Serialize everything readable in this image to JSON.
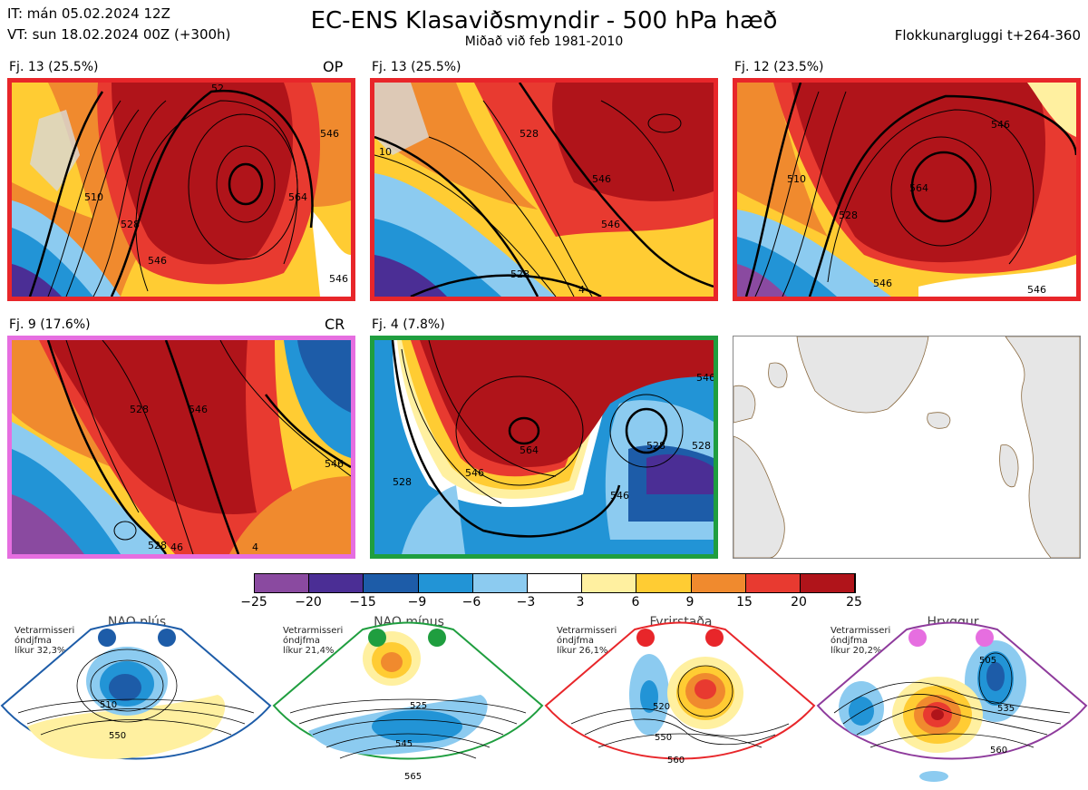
{
  "header": {
    "issue": "IT: mán 05.02.2024 12Z",
    "valid": "VT: sun 18.02.2024 00Z  (+300h)",
    "title": "EC-ENS Klasaviðsmyndir - 500 hPa hæð",
    "subtitle": "Miðað við feb 1981-2010",
    "window": "Flokkunargluggi t+264-360"
  },
  "panels": [
    {
      "label": "Fj. 13 (25.5%)",
      "tag": "OP",
      "frame": "#e8262a",
      "contours": [
        "510",
        "528",
        "546",
        "546",
        "564",
        "546",
        "52"
      ]
    },
    {
      "label": "Fj. 13 (25.5%)",
      "tag": "",
      "frame": "#e8262a",
      "contours": [
        "528",
        "546",
        "528",
        "10",
        "546",
        "4"
      ]
    },
    {
      "label": "Fj. 12 (23.5%)",
      "tag": "",
      "frame": "#e8262a",
      "contours": [
        "510",
        "528",
        "546",
        "564",
        "546",
        "546"
      ]
    },
    {
      "label": "Fj. 9 (17.6%)",
      "tag": "CR",
      "frame": "#e66ee0",
      "contours": [
        "528",
        "546",
        "546",
        "528",
        "46",
        "4"
      ]
    },
    {
      "label": "Fj. 4 (7.8%)",
      "tag": "",
      "frame": "#1f9e3f",
      "contours": [
        "564",
        "546",
        "528",
        "546",
        "528",
        "528",
        "546"
      ]
    }
  ],
  "colorbar": {
    "ticks": [
      "−25",
      "−20",
      "−15",
      "−9",
      "−6",
      "−3",
      "3",
      "6",
      "9",
      "15",
      "20",
      "25"
    ],
    "colors": [
      "#8a4aa0",
      "#4b2e95",
      "#1d5ca8",
      "#2294d6",
      "#8ccbf0",
      "#ffffff",
      "#fff0a0",
      "#ffcc33",
      "#f08a2e",
      "#e83a30",
      "#b0141a"
    ]
  },
  "regimes": [
    {
      "title": "NAO plús",
      "meta": [
        "Vetrarmisseri",
        "óndjfma",
        "líkur 32,3%"
      ],
      "color": "#1d5ca8",
      "contours": [
        "510",
        "550"
      ]
    },
    {
      "title": "NAO mínus",
      "meta": [
        "Vetrarmisseri",
        "óndjfma",
        "líkur 21,4%"
      ],
      "color": "#1f9e3f",
      "contours": [
        "525",
        "545",
        "565"
      ]
    },
    {
      "title": "Fyrirstaða",
      "meta": [
        "Vetrarmisseri",
        "óndjfma",
        "líkur 26,1%"
      ],
      "color": "#e8262a",
      "contours": [
        "520",
        "550",
        "560"
      ]
    },
    {
      "title": "Hryggur",
      "meta": [
        "Vetrarmisseri",
        "óndjfma",
        "líkur 20,2%"
      ],
      "color": "#8e3b9c",
      "contours": [
        "505",
        "535",
        "560"
      ]
    }
  ]
}
